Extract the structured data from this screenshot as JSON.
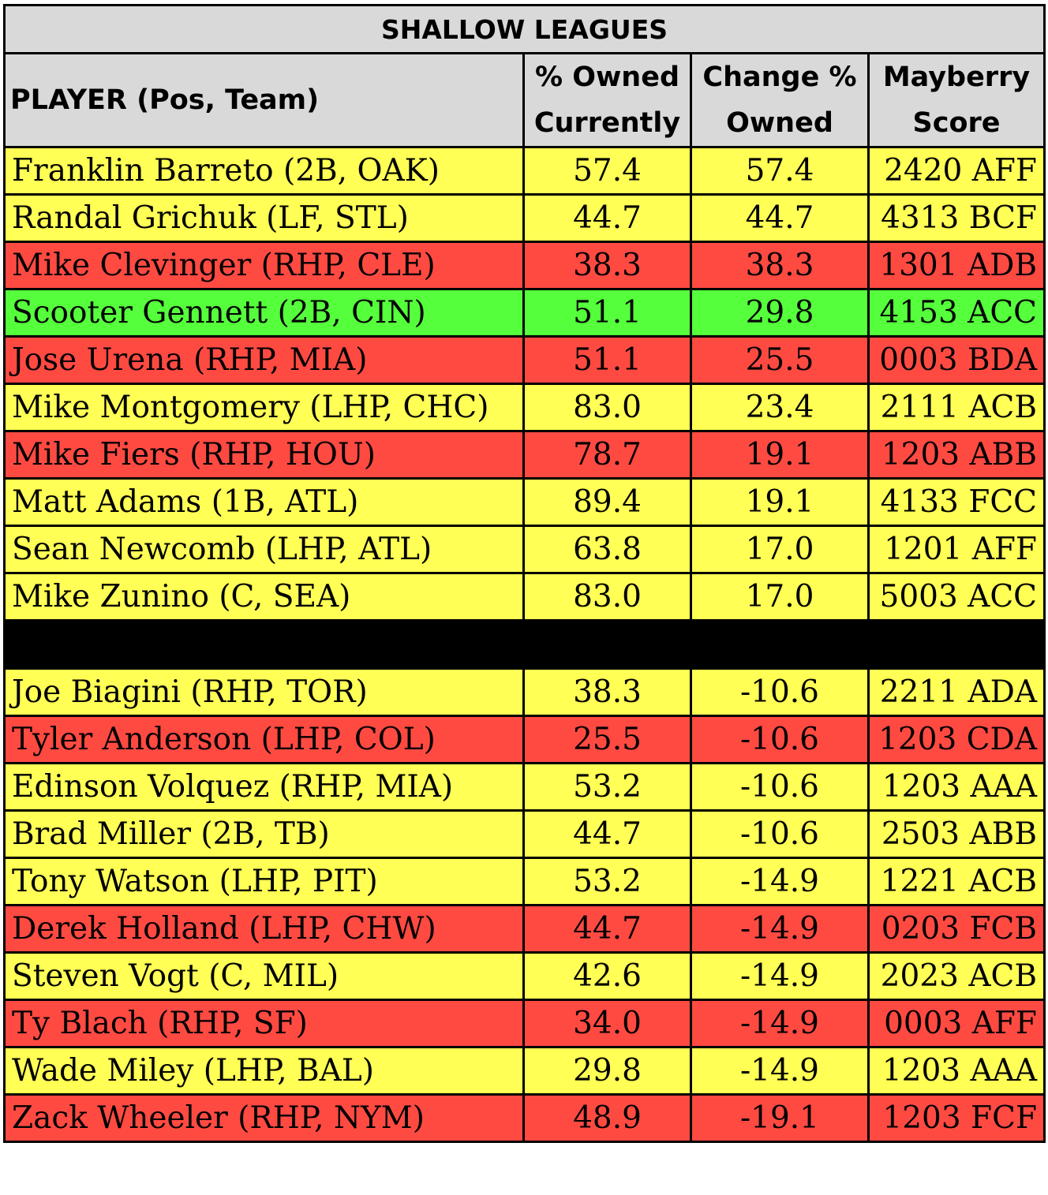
{
  "title": "SHALLOW LEAGUES",
  "headers": {
    "player": "PLAYER (Pos, Team)",
    "owned_l1": "% Owned",
    "owned_l2": "Currently",
    "change_l1": "Change %",
    "change_l2": "Owned",
    "score_l1": "Mayberry",
    "score_l2": "Score"
  },
  "colors": {
    "yellow": "#ffff55",
    "red": "#ff4a42",
    "green": "#55ff3c",
    "header": "#d9d9d9"
  },
  "risers": [
    {
      "name": "Franklin Barreto (2B, OAK)",
      "owned": "57.4",
      "change": "57.4",
      "score": "2420 AFF",
      "color": "yellow"
    },
    {
      "name": "Randal Grichuk (LF, STL)",
      "owned": "44.7",
      "change": "44.7",
      "score": "4313 BCF",
      "color": "yellow"
    },
    {
      "name": "Mike Clevinger (RHP, CLE)",
      "owned": "38.3",
      "change": "38.3",
      "score": "1301 ADB",
      "color": "red"
    },
    {
      "name": "Scooter Gennett (2B, CIN)",
      "owned": "51.1",
      "change": "29.8",
      "score": "4153 ACC",
      "color": "green"
    },
    {
      "name": "Jose Urena (RHP, MIA)",
      "owned": "51.1",
      "change": "25.5",
      "score": "0003 BDA",
      "color": "red"
    },
    {
      "name": "Mike Montgomery (LHP, CHC)",
      "owned": "83.0",
      "change": "23.4",
      "score": "2111 ACB",
      "color": "yellow"
    },
    {
      "name": "Mike Fiers (RHP, HOU)",
      "owned": "78.7",
      "change": "19.1",
      "score": "1203 ABB",
      "color": "red"
    },
    {
      "name": "Matt Adams (1B, ATL)",
      "owned": "89.4",
      "change": "19.1",
      "score": "4133 FCC",
      "color": "yellow"
    },
    {
      "name": "Sean Newcomb (LHP, ATL)",
      "owned": "63.8",
      "change": "17.0",
      "score": "1201 AFF",
      "color": "yellow"
    },
    {
      "name": "Mike Zunino (C, SEA)",
      "owned": "83.0",
      "change": "17.0",
      "score": "5003 ACC",
      "color": "yellow"
    }
  ],
  "fallers": [
    {
      "name": "Joe Biagini (RHP, TOR)",
      "owned": "38.3",
      "change": "-10.6",
      "score": "2211 ADA",
      "color": "yellow"
    },
    {
      "name": "Tyler Anderson (LHP, COL)",
      "owned": "25.5",
      "change": "-10.6",
      "score": "1203 CDA",
      "color": "red"
    },
    {
      "name": "Edinson Volquez (RHP, MIA)",
      "owned": "53.2",
      "change": "-10.6",
      "score": "1203 AAA",
      "color": "yellow"
    },
    {
      "name": "Brad Miller (2B, TB)",
      "owned": "44.7",
      "change": "-10.6",
      "score": "2503 ABB",
      "color": "yellow"
    },
    {
      "name": "Tony Watson (LHP, PIT)",
      "owned": "53.2",
      "change": "-14.9",
      "score": "1221 ACB",
      "color": "yellow"
    },
    {
      "name": "Derek Holland (LHP, CHW)",
      "owned": "44.7",
      "change": "-14.9",
      "score": "0203 FCB",
      "color": "red"
    },
    {
      "name": "Steven Vogt (C, MIL)",
      "owned": "42.6",
      "change": "-14.9",
      "score": "2023 ACB",
      "color": "yellow"
    },
    {
      "name": "Ty Blach (RHP, SF)",
      "owned": "34.0",
      "change": "-14.9",
      "score": "0003 AFF",
      "color": "red"
    },
    {
      "name": "Wade Miley (LHP, BAL)",
      "owned": "29.8",
      "change": "-14.9",
      "score": "1203 AAA",
      "color": "yellow"
    },
    {
      "name": "Zack Wheeler (RHP, NYM)",
      "owned": "48.9",
      "change": "-19.1",
      "score": "1203 FCF",
      "color": "red"
    }
  ]
}
